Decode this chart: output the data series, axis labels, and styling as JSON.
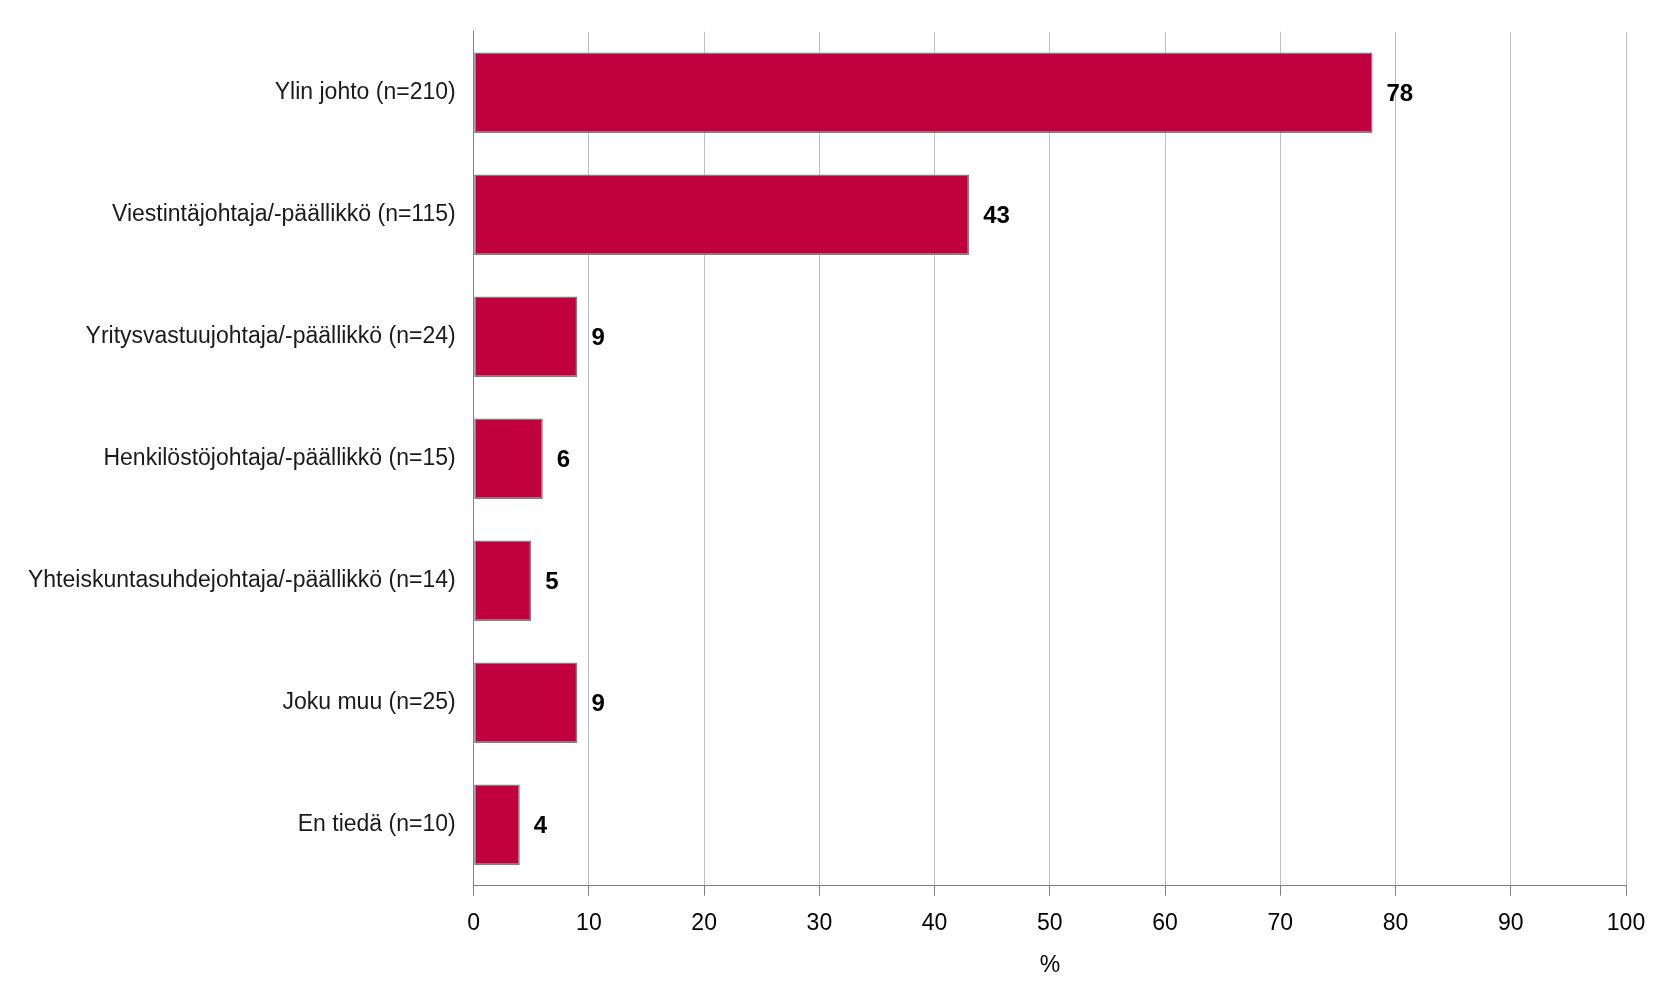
{
  "chart_data": {
    "type": "bar",
    "orientation": "horizontal",
    "xlabel": "%",
    "categories": [
      "Ylin johto (n=210)",
      "Viestintäjohtaja/-päällikkö (n=115)",
      "Yritysvastuujohtaja/-päällikkö (n=24)",
      "Henkilöstöjohtaja/-päällikkö (n=15)",
      "Yhteiskuntasuhdejohtaja/-päällikkö (n=14)",
      "Joku muu (n=25)",
      "En tiedä (n=10)"
    ],
    "values": [
      78,
      43,
      9,
      6,
      5,
      9,
      4
    ],
    "color": "#c0003f",
    "xlim": [
      0,
      100
    ],
    "xticks": [
      0,
      10,
      20,
      30,
      40,
      50,
      60,
      70,
      80,
      90,
      100
    ],
    "grid": "x",
    "data_labels": true,
    "legend": false
  }
}
